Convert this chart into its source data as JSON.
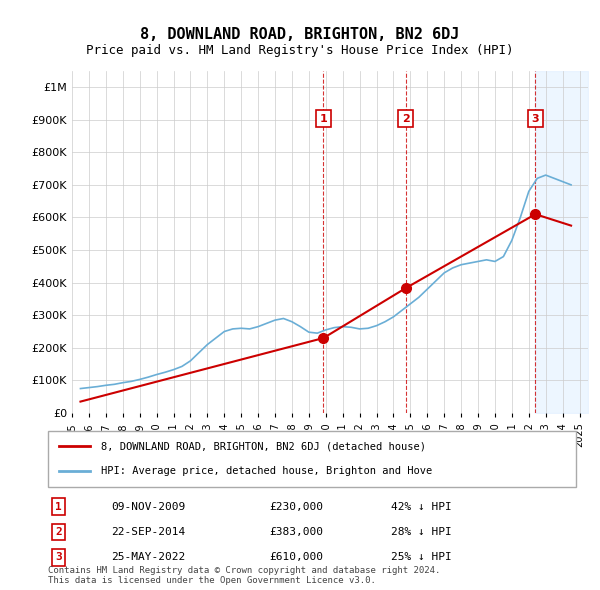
{
  "title": "8, DOWNLAND ROAD, BRIGHTON, BN2 6DJ",
  "subtitle": "Price paid vs. HM Land Registry's House Price Index (HPI)",
  "hpi_label": "HPI: Average price, detached house, Brighton and Hove",
  "property_label": "8, DOWNLAND ROAD, BRIGHTON, BN2 6DJ (detached house)",
  "footer1": "Contains HM Land Registry data © Crown copyright and database right 2024.",
  "footer2": "This data is licensed under the Open Government Licence v3.0.",
  "ylim": [
    0,
    1050000
  ],
  "yticks": [
    0,
    100000,
    200000,
    300000,
    400000,
    500000,
    600000,
    700000,
    800000,
    900000,
    1000000
  ],
  "ytick_labels": [
    "£0",
    "£100K",
    "£200K",
    "£300K",
    "£400K",
    "£500K",
    "£600K",
    "£700K",
    "£800K",
    "£900K",
    "£1M"
  ],
  "hpi_color": "#6aaed6",
  "property_color": "#cc0000",
  "sale_color": "#cc0000",
  "vline_color": "#cc0000",
  "vline_style": "dashed",
  "annotation_box_color": "#cc0000",
  "purchases": [
    {
      "date_num": 2009.86,
      "price": 230000,
      "label": "1",
      "date_str": "09-NOV-2009",
      "pct": "42% ↓ HPI"
    },
    {
      "date_num": 2014.72,
      "price": 383000,
      "label": "2",
      "date_str": "22-SEP-2014",
      "pct": "28% ↓ HPI"
    },
    {
      "date_num": 2022.39,
      "price": 610000,
      "label": "3",
      "date_str": "25-MAY-2022",
      "pct": "25% ↓ HPI"
    }
  ],
  "hpi_data": {
    "years": [
      1995.5,
      1996.0,
      1996.5,
      1997.0,
      1997.5,
      1998.0,
      1998.5,
      1999.0,
      1999.5,
      2000.0,
      2000.5,
      2001.0,
      2001.5,
      2002.0,
      2002.5,
      2003.0,
      2003.5,
      2004.0,
      2004.5,
      2005.0,
      2005.5,
      2006.0,
      2006.5,
      2007.0,
      2007.5,
      2008.0,
      2008.5,
      2009.0,
      2009.5,
      2010.0,
      2010.5,
      2011.0,
      2011.5,
      2012.0,
      2012.5,
      2013.0,
      2013.5,
      2014.0,
      2014.5,
      2015.0,
      2015.5,
      2016.0,
      2016.5,
      2017.0,
      2017.5,
      2018.0,
      2018.5,
      2019.0,
      2019.5,
      2020.0,
      2020.5,
      2021.0,
      2021.5,
      2022.0,
      2022.5,
      2023.0,
      2023.5,
      2024.0,
      2024.5
    ],
    "values": [
      75000,
      78000,
      81000,
      85000,
      88000,
      93000,
      97000,
      103000,
      110000,
      118000,
      125000,
      133000,
      143000,
      160000,
      185000,
      210000,
      230000,
      250000,
      258000,
      260000,
      258000,
      265000,
      275000,
      285000,
      290000,
      280000,
      265000,
      248000,
      245000,
      255000,
      262000,
      265000,
      263000,
      258000,
      260000,
      268000,
      280000,
      295000,
      315000,
      335000,
      355000,
      380000,
      405000,
      430000,
      445000,
      455000,
      460000,
      465000,
      470000,
      465000,
      480000,
      530000,
      600000,
      680000,
      720000,
      730000,
      720000,
      710000,
      700000
    ]
  },
  "property_data": {
    "years": [
      1995.5,
      2009.86,
      2014.72,
      2022.39,
      2024.5
    ],
    "values": [
      35000,
      230000,
      383000,
      610000,
      575000
    ]
  },
  "xmin": 1995.0,
  "xmax": 2025.5,
  "xticks": [
    1995,
    1996,
    1997,
    1998,
    1999,
    2000,
    2001,
    2002,
    2003,
    2004,
    2005,
    2006,
    2007,
    2008,
    2009,
    2010,
    2011,
    2012,
    2013,
    2014,
    2015,
    2016,
    2017,
    2018,
    2019,
    2020,
    2021,
    2022,
    2023,
    2024,
    2025
  ]
}
